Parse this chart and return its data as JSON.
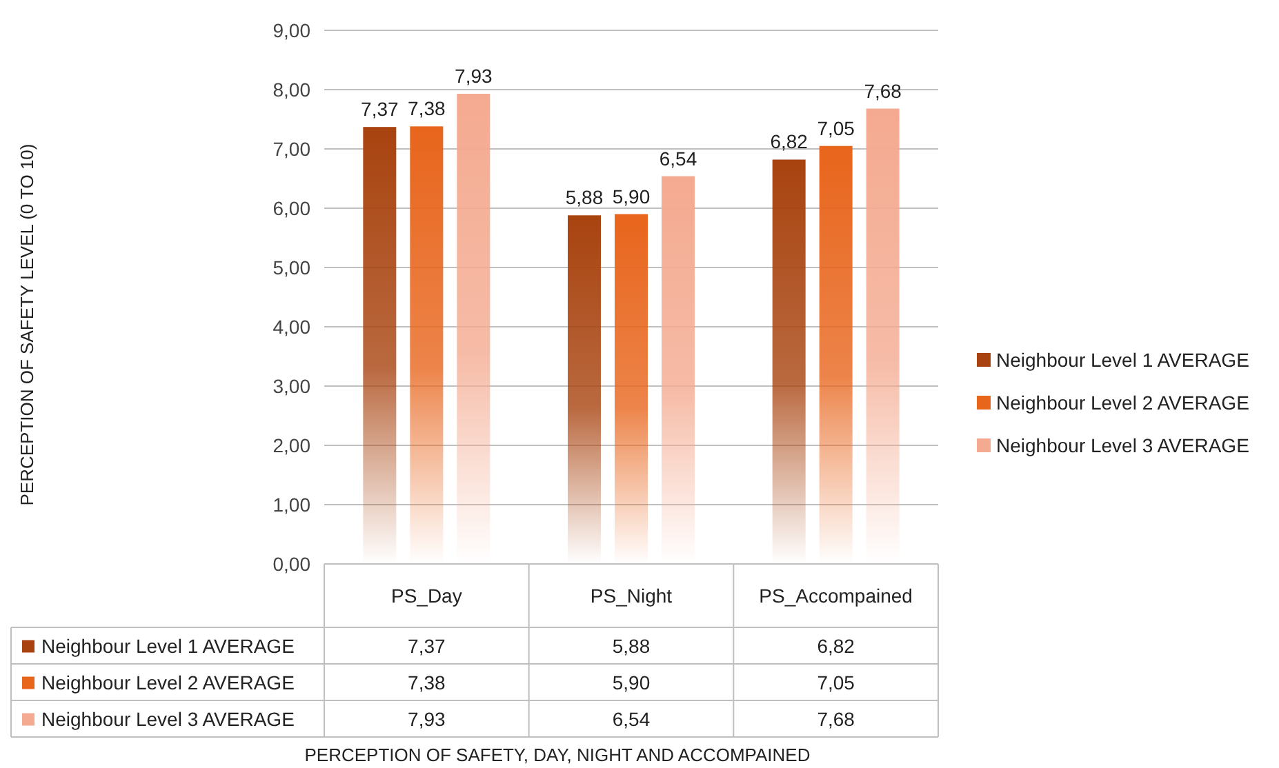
{
  "chart_data": {
    "type": "bar",
    "annotations": [
      "PERCEPTION OF SAFETY LEVEL (0 TO 10)",
      "PERCEPTION OF SAFETY, DAY, NIGHT AND ACCOMPAINED"
    ],
    "categories": [
      "PS_Day",
      "PS_Night",
      "PS_Accompained"
    ],
    "series": [
      {
        "name": "Neighbour Level 1 AVERAGE",
        "color": "#a8430f",
        "values": [
          7.37,
          5.88,
          6.82
        ],
        "value_labels": [
          "7,37",
          "5,88",
          "6,82"
        ]
      },
      {
        "name": "Neighbour Level 2 AVERAGE",
        "color": "#e8651c",
        "values": [
          7.38,
          5.9,
          7.05
        ],
        "value_labels": [
          "7,38",
          "5,90",
          "7,05"
        ]
      },
      {
        "name": "Neighbour Level 3 AVERAGE",
        "color": "#f4aa90",
        "values": [
          7.93,
          6.54,
          7.68
        ],
        "value_labels": [
          "7,93",
          "6,54",
          "7,68"
        ]
      }
    ],
    "ylim": [
      0,
      9
    ],
    "yticks": [
      {
        "value": 0,
        "label": "0,00"
      },
      {
        "value": 1,
        "label": "1,00"
      },
      {
        "value": 2,
        "label": "2,00"
      },
      {
        "value": 3,
        "label": "3,00"
      },
      {
        "value": 4,
        "label": "4,00"
      },
      {
        "value": 5,
        "label": "5,00"
      },
      {
        "value": 6,
        "label": "6,00"
      },
      {
        "value": 7,
        "label": "7,00"
      },
      {
        "value": 8,
        "label": "8,00"
      },
      {
        "value": 9,
        "label": "9,00"
      }
    ],
    "grid": "y",
    "legend": "right"
  }
}
